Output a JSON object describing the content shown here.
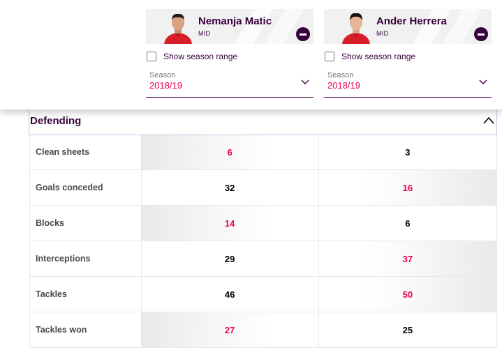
{
  "players": [
    {
      "name": "Nemanja Matic",
      "position": "MID",
      "show_range_label": "Show season range",
      "season_label": "Season",
      "season_value": "2018/19"
    },
    {
      "name": "Ander Herrera",
      "position": "MID",
      "show_range_label": "Show season range",
      "season_label": "Season",
      "season_value": "2018/19"
    }
  ],
  "section": {
    "title": "Defending",
    "rows": [
      {
        "label": "Clean sheets",
        "p1": "6",
        "p2": "3",
        "leader": "p1"
      },
      {
        "label": "Goals conceded",
        "p1": "32",
        "p2": "16",
        "leader": "p2"
      },
      {
        "label": "Blocks",
        "p1": "14",
        "p2": "6",
        "leader": "p1"
      },
      {
        "label": "Interceptions",
        "p1": "29",
        "p2": "37",
        "leader": "p2"
      },
      {
        "label": "Tackles",
        "p1": "46",
        "p2": "50",
        "leader": "p2"
      },
      {
        "label": "Tackles won",
        "p1": "27",
        "p2": "25",
        "leader": "p1"
      }
    ]
  },
  "colors": {
    "brand_purple": "#37003c",
    "highlight_pink": "#e90052"
  }
}
